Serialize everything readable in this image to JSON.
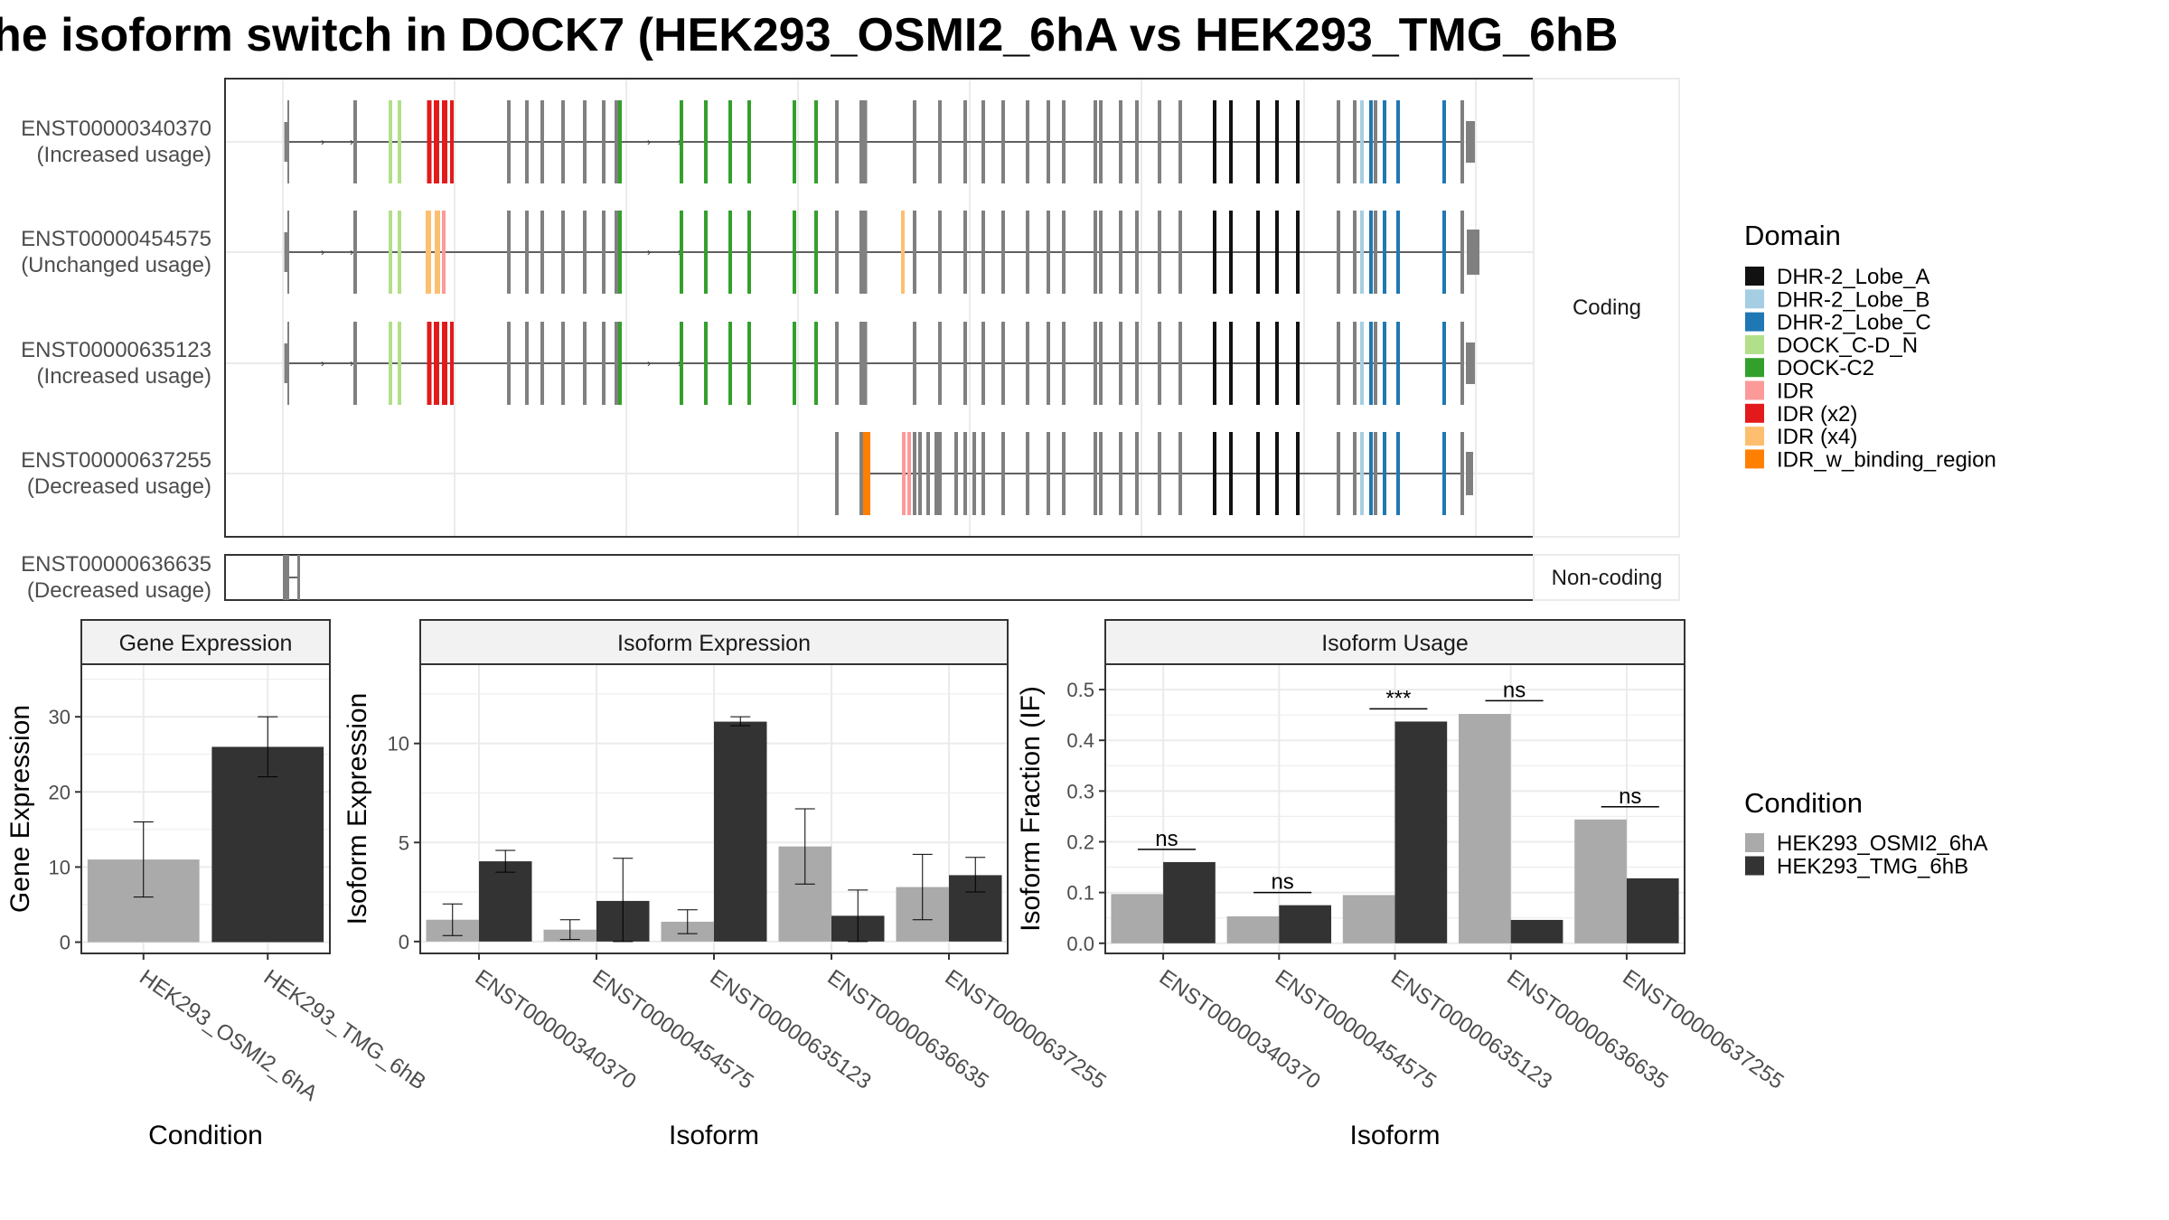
{
  "title": "he isoform switch in DOCK7 (HEK293_OSMI2_6hA vs HEK293_TMG_6hB",
  "colors": {
    "cond_a": "#aaaaaa",
    "cond_b": "#333333",
    "exon_default": "#808080",
    "DHR-2_Lobe_A": "#111111",
    "DHR-2_Lobe_B": "#a6cee3",
    "DHR-2_Lobe_C": "#1f78b4",
    "DOCK_C-D_N": "#b2df8a",
    "DOCK-C2": "#33a02c",
    "IDR": "#fb9a99",
    "IDR (x2)": "#e31a1c",
    "IDR (x4)": "#fdbf6f",
    "IDR_w_binding_region": "#ff7f00"
  },
  "structure": {
    "coding_label": "Coding",
    "noncoding_label": "Non-coding",
    "transcripts": [
      {
        "id": "ENST00000340370",
        "usage": "(Increased usage)",
        "group": "coding"
      },
      {
        "id": "ENST00000454575",
        "usage": "(Unchanged usage)",
        "group": "coding"
      },
      {
        "id": "ENST00000635123",
        "usage": "(Increased usage)",
        "group": "coding"
      },
      {
        "id": "ENST00000637255",
        "usage": "(Decreased usage)",
        "group": "coding"
      },
      {
        "id": "ENST00000636635",
        "usage": "(Decreased usage)",
        "group": "noncoding"
      }
    ]
  },
  "legend_domain": {
    "title": "Domain",
    "items": [
      "DHR-2_Lobe_A",
      "DHR-2_Lobe_B",
      "DHR-2_Lobe_C",
      "DOCK_C-D_N",
      "DOCK-C2",
      "IDR",
      "IDR (x2)",
      "IDR (x4)",
      "IDR_w_binding_region"
    ]
  },
  "legend_condition": {
    "title": "Condition",
    "items": [
      "HEK293_OSMI2_6hA",
      "HEK293_TMG_6hB"
    ]
  },
  "chart_data": [
    {
      "type": "bar",
      "title": "Gene Expression",
      "xlabel": "Condition",
      "ylabel": "Gene Expression",
      "ylim": [
        -1.5,
        37
      ],
      "yticks": [
        0,
        10,
        20,
        30
      ],
      "categories": [
        "HEK293_OSMI2_6hA",
        "HEK293_TMG_6hB"
      ],
      "values": [
        11,
        26
      ],
      "error_low": [
        6,
        22
      ],
      "error_high": [
        16,
        30
      ]
    },
    {
      "type": "bar",
      "title": "Isoform Expression",
      "xlabel": "Isoform",
      "ylabel": "Isoform Expression",
      "ylim": [
        -0.6,
        14
      ],
      "yticks": [
        0,
        5,
        10
      ],
      "categories": [
        "ENST00000340370",
        "ENST00000454575",
        "ENST00000635123",
        "ENST00000636635",
        "ENST00000637255"
      ],
      "series": [
        {
          "name": "HEK293_OSMI2_6hA",
          "values": [
            1.1,
            0.6,
            1.0,
            4.8,
            2.75
          ],
          "error_low": [
            0.3,
            0.1,
            0.4,
            2.9,
            1.1
          ],
          "error_high": [
            1.9,
            1.1,
            1.6,
            6.7,
            4.4
          ]
        },
        {
          "name": "HEK293_TMG_6hB",
          "values": [
            4.05,
            2.05,
            11.1,
            1.3,
            3.35
          ],
          "error_low": [
            3.5,
            0.0,
            10.9,
            0.0,
            2.5
          ],
          "error_high": [
            4.6,
            4.2,
            11.35,
            2.6,
            4.25
          ]
        }
      ]
    },
    {
      "type": "bar",
      "title": "Isoform Usage",
      "xlabel": "Isoform",
      "ylabel": "Isoform Fraction (IF)",
      "ylim": [
        -0.02,
        0.55
      ],
      "yticks": [
        0.0,
        0.1,
        0.2,
        0.3,
        0.4,
        0.5
      ],
      "categories": [
        "ENST00000340370",
        "ENST00000454575",
        "ENST00000635123",
        "ENST00000636635",
        "ENST00000637255"
      ],
      "series": [
        {
          "name": "HEK293_OSMI2_6hA",
          "values": [
            0.097,
            0.053,
            0.095,
            0.452,
            0.244
          ]
        },
        {
          "name": "HEK293_TMG_6hB",
          "values": [
            0.16,
            0.075,
            0.437,
            0.046,
            0.128
          ]
        }
      ],
      "significance": [
        "ns",
        "ns",
        "***",
        "ns",
        "ns"
      ],
      "sig_y": [
        0.185,
        0.1,
        0.462,
        0.478,
        0.269
      ]
    }
  ]
}
